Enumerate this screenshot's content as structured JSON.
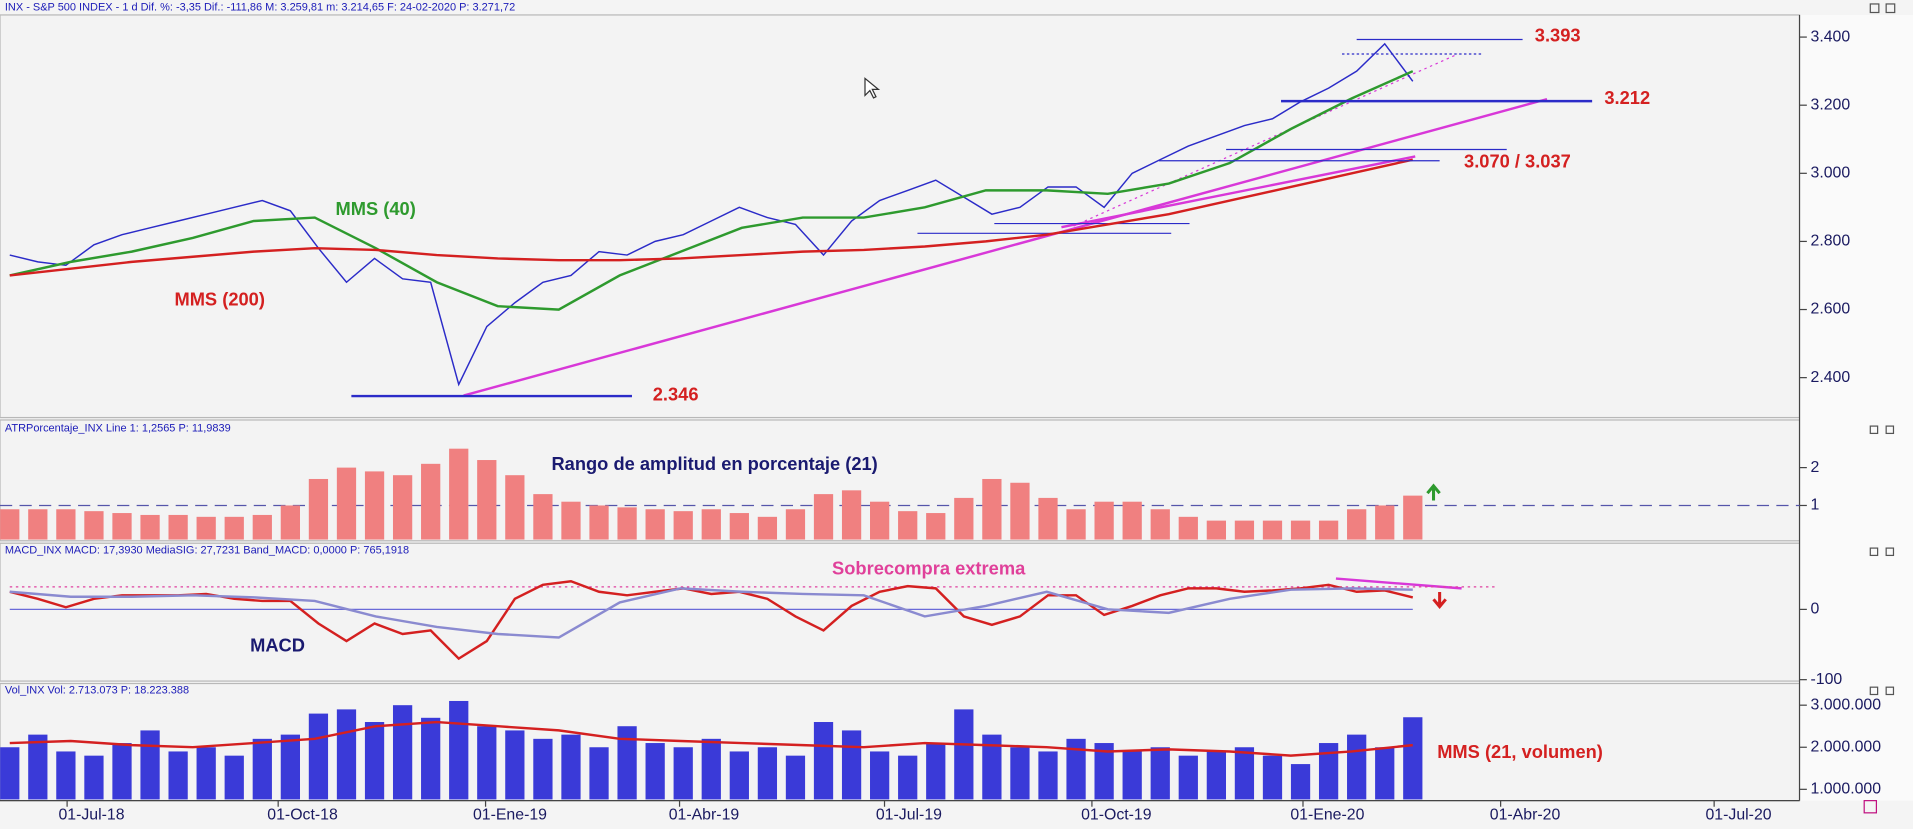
{
  "chart_data": [
    {
      "type": "line",
      "header": "INX - S&P 500 INDEX - 1 d  Dif. %: -3,35  Dif.: -111,86  M: 3.259,81  m: 3.214,65  F: 24-02-2020  P: 3.271,72",
      "ylim": [
        2290,
        3465
      ],
      "yticks": [
        {
          "value": 2400,
          "label": "2.400"
        },
        {
          "value": 2600,
          "label": "2.600"
        },
        {
          "value": 2800,
          "label": "2.800"
        },
        {
          "value": 3000,
          "label": "3.000"
        },
        {
          "value": 3200,
          "label": "3.200"
        },
        {
          "value": 3400,
          "label": "3.400"
        }
      ],
      "series": [
        {
          "color": "#2b2bc8",
          "values": [
            2760,
            2740,
            2730,
            2790,
            2820,
            2840,
            2860,
            2880,
            2900,
            2920,
            2890,
            2780,
            2680,
            2750,
            2690,
            2680,
            2380,
            2550,
            2620,
            2680,
            2700,
            2770,
            2760,
            2800,
            2820,
            2860,
            2900,
            2870,
            2850,
            2760,
            2860,
            2920,
            2950,
            2980,
            2930,
            2880,
            2900,
            2960,
            2960,
            2900,
            3000,
            3040,
            3080,
            3110,
            3140,
            3160,
            3210,
            3250,
            3300,
            3380,
            3270
          ]
        },
        {
          "name": "MMS (40)",
          "color": "#2e9a2e",
          "values": [
            2700,
            2740,
            2770,
            2810,
            2860,
            2870,
            2780,
            2680,
            2610,
            2600,
            2700,
            2770,
            2840,
            2870,
            2870,
            2900,
            2950,
            2950,
            2940,
            2970,
            3030,
            3130,
            3220,
            3300
          ]
        },
        {
          "name": "MMS (200)",
          "color": "#d42020",
          "values": [
            2700,
            2720,
            2740,
            2755,
            2770,
            2780,
            2775,
            2760,
            2750,
            2745,
            2745,
            2750,
            2760,
            2770,
            2775,
            2785,
            2800,
            2820,
            2850,
            2880,
            2920,
            2960,
            3000,
            3040
          ]
        }
      ],
      "levels": [
        {
          "value": 3393,
          "label": "3.393"
        },
        {
          "value": 3212,
          "label": "3.212"
        },
        {
          "values": [
            3070,
            3037
          ],
          "label": "3.070 / 3.037"
        },
        {
          "value": 2346,
          "label": "2.346"
        }
      ]
    },
    {
      "type": "bar",
      "header": "ATRPorcentaje_INX  Line 1: 1,2565  P: 11,9839",
      "title": "Rango de amplitud en porcentaje (21)",
      "ylim": [
        0.1,
        3.0
      ],
      "yticks": [
        1,
        2
      ],
      "reference_line": 1,
      "color": "#f08080",
      "values": [
        0.9,
        0.9,
        0.9,
        0.85,
        0.8,
        0.75,
        0.75,
        0.7,
        0.7,
        0.75,
        1.0,
        1.7,
        2.0,
        1.9,
        1.8,
        2.1,
        2.5,
        2.2,
        1.8,
        1.3,
        1.1,
        1.0,
        0.95,
        0.9,
        0.85,
        0.9,
        0.8,
        0.7,
        0.9,
        1.3,
        1.4,
        1.1,
        0.85,
        0.8,
        1.2,
        1.7,
        1.6,
        1.2,
        0.9,
        1.1,
        1.1,
        0.9,
        0.7,
        0.6,
        0.6,
        0.6,
        0.6,
        0.6,
        0.9,
        1.0,
        1.26
      ]
    },
    {
      "type": "line",
      "header": "MACD_INX  MACD: 17,3930  MediaSIG: 27,7231  Band_MACD: 0,0000  P: 765,1918",
      "ylim": [
        -102,
        82
      ],
      "yticks": [
        -100,
        0
      ],
      "overbought": {
        "label": "Sobrecompra extrema",
        "value": 32
      },
      "series": [
        {
          "name": "MACD",
          "color": "#d42020",
          "values": [
            25,
            15,
            3,
            15,
            20,
            20,
            20,
            22,
            15,
            12,
            12,
            -20,
            -45,
            -20,
            -35,
            -30,
            -70,
            -45,
            15,
            35,
            40,
            25,
            20,
            25,
            30,
            22,
            25,
            15,
            -10,
            -30,
            5,
            25,
            33,
            30,
            -10,
            -22,
            -10,
            20,
            20,
            -8,
            5,
            20,
            30,
            30,
            25,
            27,
            30,
            35,
            25,
            27,
            17
          ]
        },
        {
          "color": "#8a8ad0",
          "values": [
            25,
            18,
            18,
            20,
            17,
            12,
            -10,
            -25,
            -35,
            -40,
            10,
            30,
            25,
            22,
            20,
            -10,
            5,
            25,
            0,
            -5,
            15,
            28,
            30,
            28
          ]
        }
      ]
    },
    {
      "type": "bar",
      "header": "Vol_INX  Vol: 2.713.073  P: 18.223.388",
      "ylim": [
        760000,
        3370000
      ],
      "yticks": [
        {
          "value": 1000000,
          "label": "1.000.000"
        },
        {
          "value": 2000000,
          "label": "2.000.000"
        },
        {
          "value": 3000000,
          "label": "3.000.000"
        }
      ],
      "color": "#3a3ad8",
      "values": [
        2000000,
        2300000,
        1900000,
        1800000,
        2100000,
        2400000,
        1900000,
        2000000,
        1800000,
        2200000,
        2300000,
        2800000,
        2900000,
        2600000,
        3000000,
        2700000,
        3100000,
        2500000,
        2400000,
        2200000,
        2300000,
        2000000,
        2500000,
        2100000,
        2000000,
        2200000,
        1900000,
        2000000,
        1800000,
        2600000,
        2400000,
        1900000,
        1800000,
        2100000,
        2900000,
        2300000,
        2000000,
        1900000,
        2200000,
        2100000,
        1900000,
        2000000,
        1800000,
        1900000,
        2000000,
        1800000,
        1600000,
        2100000,
        2300000,
        2000000,
        2713073
      ],
      "series": [
        {
          "name": "MMS (21, volumen)",
          "color": "#d42020",
          "values": [
            2100000,
            2150000,
            2050000,
            2000000,
            2100000,
            2200000,
            2500000,
            2600000,
            2500000,
            2400000,
            2200000,
            2150000,
            2100000,
            2050000,
            2000000,
            2100000,
            2050000,
            2000000,
            1900000,
            1950000,
            1900000,
            1800000,
            1900000,
            2050000
          ]
        }
      ],
      "xtick_labels": [
        "01-Jul-18",
        "01-Oct-18",
        "01-Ene-19",
        "01-Abr-19",
        "01-Jul-19",
        "01-Oct-19",
        "01-Ene-20",
        "01-Abr-20",
        "01-Jul-20"
      ]
    }
  ]
}
